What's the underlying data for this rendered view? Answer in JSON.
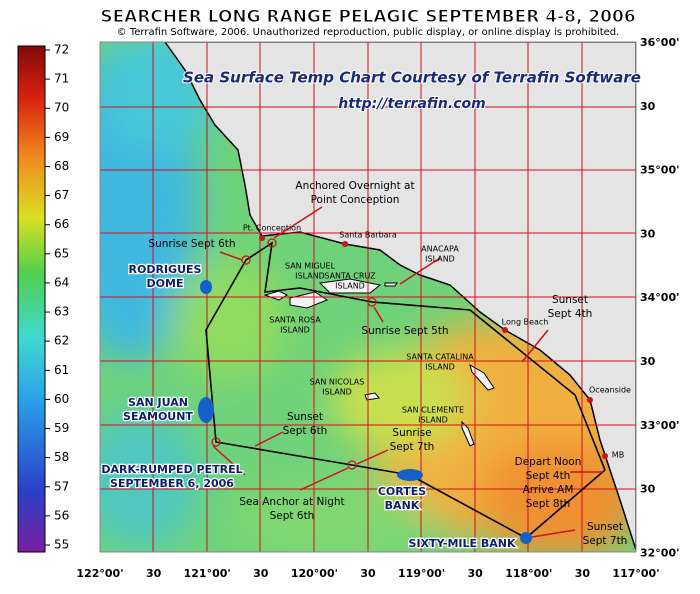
{
  "title": "SEARCHER LONG RANGE PELAGIC SEPTEMBER 4-8, 2006",
  "copyright": "© Terrafin Software,  2006.  Unauthorized reproduction, public display, or online display is prohibited.",
  "courtesy": "Sea Surface Temp Chart Courtesy of Terrafin Software",
  "url": "http://terrafin.com",
  "colorbar": {
    "ticks": [
      55,
      56,
      57,
      58,
      59,
      60,
      61,
      62,
      63,
      64,
      65,
      66,
      67,
      68,
      69,
      70,
      71,
      72
    ]
  },
  "longitude_labels": [
    "122°00'",
    "30",
    "121°00'",
    "30",
    "120°00'",
    "30",
    "119°00'",
    "30",
    "118°00'",
    "30",
    "117°00'"
  ],
  "latitude_labels": [
    "36°00'",
    "30",
    "35°00'",
    "30",
    "34°00'",
    "30",
    "33°00'",
    "30",
    "32°00'"
  ],
  "places": [
    {
      "lines": [
        "Pt. Conception"
      ]
    },
    {
      "lines": [
        "Santa Barbara"
      ]
    },
    {
      "lines": [
        "SAN MIGUEL",
        "ISLAND"
      ]
    },
    {
      "lines": [
        "SANTA CRUZ",
        "ISLAND"
      ]
    },
    {
      "lines": [
        "ANACAPA",
        "ISLAND"
      ]
    },
    {
      "lines": [
        "SANTA ROSA",
        "ISLAND"
      ]
    },
    {
      "lines": [
        "Long Beach"
      ]
    },
    {
      "lines": [
        "SANTA CATALINA",
        "ISLAND"
      ]
    },
    {
      "lines": [
        "SAN NICOLAS",
        "ISLAND"
      ]
    },
    {
      "lines": [
        "SAN CLEMENTE",
        "ISLAND"
      ]
    },
    {
      "lines": [
        "Oceanside"
      ]
    },
    {
      "lines": [
        "MB"
      ]
    }
  ],
  "features": [
    {
      "lines": [
        "RODRIGUES",
        "DOME"
      ]
    },
    {
      "lines": [
        "SAN JUAN",
        "SEAMOUNT"
      ]
    },
    {
      "lines": [
        "DARK-RUMPED PETREL",
        "SEPTEMBER 6, 2006"
      ]
    },
    {
      "lines": [
        "CORTES",
        "BANK"
      ]
    },
    {
      "lines": [
        "SIXTY-MILE BANK"
      ]
    }
  ],
  "notes": [
    {
      "lines": [
        "Anchored Overnight at",
        "Point Conception"
      ]
    },
    {
      "lines": [
        "Sunrise Sept 6th"
      ]
    },
    {
      "lines": [
        "Sunrise Sept 5th"
      ]
    },
    {
      "lines": [
        "Sunset",
        "Sept 4th"
      ]
    },
    {
      "lines": [
        "Sunset",
        "Sept 6th"
      ]
    },
    {
      "lines": [
        "Sunrise",
        "Sept 7th"
      ]
    },
    {
      "lines": [
        "Sea Anchor at Night",
        "Sept 6th"
      ]
    },
    {
      "lines": [
        "Depart Noon",
        "Sept 4th",
        "Arrive AM",
        "Sept 8th"
      ]
    },
    {
      "lines": [
        "Sunset",
        "Sept 7th"
      ]
    }
  ]
}
